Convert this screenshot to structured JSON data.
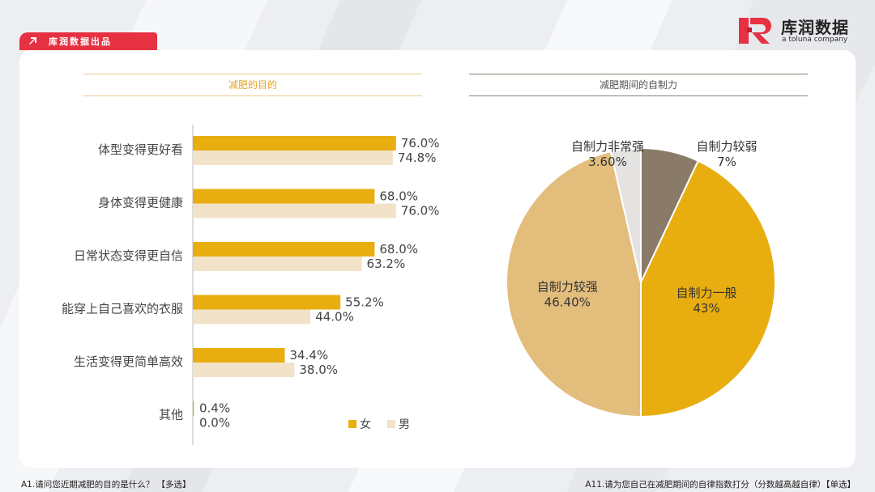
{
  "header": {
    "tag_label": "库润数据出品",
    "logo_name": "库润数据",
    "logo_sub": "a toluna company"
  },
  "left_panel": {
    "title": "减肥的目的"
  },
  "right_panel": {
    "title": "减肥期间的自制力"
  },
  "footer": {
    "left": "A1.请问您近期减肥的目的是什么？ 【多选】",
    "right": "A11.请为您自己在减肥期间的自律指数打分（分数越高越自律）【单选】"
  },
  "colors": {
    "female": "#e8ae10",
    "male": "#f2e2c8",
    "accent": "#e63142"
  },
  "chart_data": [
    {
      "type": "bar",
      "orientation": "horizontal",
      "title": "减肥的目的",
      "categories": [
        "体型变得更好看",
        "身体变得更健康",
        "日常状态变得更自信",
        "能穿上自己喜欢的衣服",
        "生活变得更简单高效",
        "其他"
      ],
      "series": [
        {
          "name": "女",
          "values": [
            76.0,
            68.0,
            68.0,
            55.2,
            34.4,
            0.4
          ],
          "labels": [
            "76.0%",
            "68.0%",
            "68.0%",
            "55.2%",
            "34.4%",
            "0.4%"
          ],
          "color": "#e8ae10"
        },
        {
          "name": "男",
          "values": [
            74.8,
            76.0,
            63.2,
            44.0,
            38.0,
            0.0
          ],
          "labels": [
            "74.8%",
            "76.0%",
            "63.2%",
            "44.0%",
            "38.0%",
            "0.0%"
          ],
          "color": "#f2e2c8"
        }
      ],
      "unit": "%",
      "legend": "bottom-right",
      "grid": false
    },
    {
      "type": "pie",
      "title": "减肥期间的自制力",
      "slices": [
        {
          "name": "自制力较弱",
          "value": 7,
          "label": "7%",
          "color": "#8a7b68"
        },
        {
          "name": "自制力一般",
          "value": 43,
          "label": "43%",
          "color": "#e8ae10"
        },
        {
          "name": "自制力较强",
          "value": 46.4,
          "label": "46.40%",
          "color": "#e3bd7c"
        },
        {
          "name": "自制力非常强",
          "value": 3.6,
          "label": "3.60%",
          "color": "#e4e3e1"
        }
      ]
    }
  ]
}
